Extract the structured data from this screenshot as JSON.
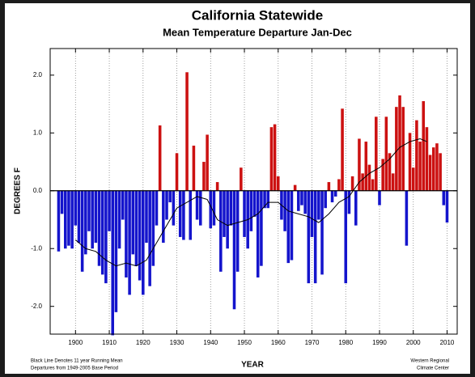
{
  "chart_data": {
    "type": "bar",
    "title": "California Statewide",
    "subtitle": "Mean Temperature Departure Jan-Dec",
    "x_label": "YEAR",
    "y_label": "DEGREES F",
    "footnotes": [
      "Black Line Denotes 11  year Running Mean",
      "Departures from 1949-2005 Base Period"
    ],
    "credit": [
      "Western Regional",
      "Climate Center"
    ],
    "positive_color": "#cc1111",
    "negative_color": "#1414cc",
    "x": [
      1895,
      1896,
      1897,
      1898,
      1899,
      1900,
      1901,
      1902,
      1903,
      1904,
      1905,
      1906,
      1907,
      1908,
      1909,
      1910,
      1911,
      1912,
      1913,
      1914,
      1915,
      1916,
      1917,
      1918,
      1919,
      1920,
      1921,
      1922,
      1923,
      1924,
      1925,
      1926,
      1927,
      1928,
      1929,
      1930,
      1931,
      1932,
      1933,
      1934,
      1935,
      1936,
      1937,
      1938,
      1939,
      1940,
      1941,
      1942,
      1943,
      1944,
      1945,
      1946,
      1947,
      1948,
      1949,
      1950,
      1951,
      1952,
      1953,
      1954,
      1955,
      1956,
      1957,
      1958,
      1959,
      1960,
      1961,
      1962,
      1963,
      1964,
      1965,
      1966,
      1967,
      1968,
      1969,
      1970,
      1971,
      1972,
      1973,
      1974,
      1975,
      1976,
      1977,
      1978,
      1979,
      1980,
      1981,
      1982,
      1983,
      1984,
      1985,
      1986,
      1987,
      1988,
      1989,
      1990,
      1991,
      1992,
      1993,
      1994,
      1995,
      1996,
      1997,
      1998,
      1999,
      2000,
      2001,
      2002,
      2003,
      2004,
      2005,
      2006,
      2007,
      2008,
      2009,
      2010
    ],
    "values": [
      -1.05,
      -0.4,
      -1.0,
      -0.95,
      -1.0,
      -0.6,
      -0.9,
      -1.4,
      -1.1,
      -0.7,
      -1.0,
      -0.9,
      -1.3,
      -1.45,
      -1.6,
      -0.7,
      -2.5,
      -2.1,
      -1.0,
      -0.5,
      -1.5,
      -1.8,
      -1.1,
      -1.3,
      -1.55,
      -1.8,
      -0.9,
      -1.65,
      -1.3,
      -0.6,
      1.13,
      -0.9,
      -0.5,
      -0.2,
      -0.6,
      0.65,
      -0.8,
      -0.85,
      2.05,
      -0.85,
      0.78,
      -0.5,
      -0.6,
      0.5,
      0.97,
      -0.65,
      -0.6,
      0.15,
      -1.4,
      -0.8,
      -1.0,
      -0.6,
      -2.05,
      -1.4,
      0.4,
      -0.8,
      -1.0,
      -0.7,
      -0.45,
      -1.5,
      -1.3,
      -0.3,
      -0.3,
      1.1,
      1.15,
      0.25,
      -0.5,
      -0.7,
      -1.25,
      -1.2,
      0.1,
      -0.35,
      -0.25,
      -0.4,
      -1.6,
      -0.8,
      -1.6,
      -0.5,
      -1.45,
      -0.3,
      0.15,
      -0.2,
      -0.1,
      0.2,
      1.42,
      -1.6,
      -0.4,
      0.25,
      -0.6,
      0.9,
      0.3,
      0.85,
      0.45,
      0.2,
      1.28,
      -0.25,
      0.55,
      1.28,
      0.65,
      0.3,
      1.45,
      1.65,
      1.45,
      -0.95,
      1.0,
      0.4,
      1.22,
      0.85,
      1.55,
      1.1,
      0.62,
      0.75,
      0.82,
      0.65,
      -0.25,
      -0.55
    ],
    "running_mean": {
      "color": "#000000",
      "x": [
        1900,
        1903,
        1906,
        1909,
        1912,
        1915,
        1918,
        1921,
        1924,
        1927,
        1930,
        1933,
        1936,
        1939,
        1942,
        1945,
        1948,
        1951,
        1954,
        1957,
        1960,
        1963,
        1966,
        1969,
        1972,
        1975,
        1978,
        1981,
        1984,
        1987,
        1990,
        1993,
        1996,
        1999,
        2002,
        2004
      ],
      "values": [
        -0.85,
        -1.0,
        -1.05,
        -1.2,
        -1.3,
        -1.25,
        -1.3,
        -1.2,
        -0.9,
        -0.6,
        -0.3,
        -0.2,
        -0.1,
        -0.15,
        -0.5,
        -0.6,
        -0.55,
        -0.5,
        -0.4,
        -0.2,
        -0.2,
        -0.35,
        -0.4,
        -0.45,
        -0.55,
        -0.4,
        -0.2,
        -0.1,
        0.15,
        0.3,
        0.4,
        0.55,
        0.75,
        0.85,
        0.9,
        0.85
      ]
    },
    "xlim": [
      1892.5,
      2013
    ],
    "xticks": [
      1900,
      1910,
      1920,
      1930,
      1940,
      1950,
      1960,
      1970,
      1980,
      1990,
      2000,
      2010
    ],
    "ylim": [
      -2.48,
      2.46
    ],
    "yticks": [
      {
        "value": 2,
        "label": "2.0"
      },
      {
        "value": 1,
        "label": "1.0"
      },
      {
        "value": 0,
        "label": "0.0"
      },
      {
        "value": -1,
        "label": "-1.0"
      },
      {
        "value": -2,
        "label": "-2.0"
      }
    ],
    "x_grid": true
  }
}
